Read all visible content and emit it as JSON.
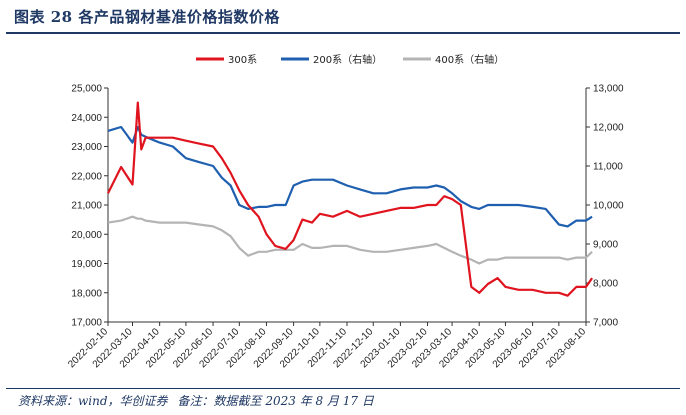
{
  "figure": {
    "title": "图表 28   各产品钢材基准价格指数价格",
    "source": "资料来源：wind，华创证券",
    "note": "备注：数据截至 2023 年 8 月 17 日"
  },
  "colors": {
    "series_300": "#e0141e",
    "series_200": "#1f5fb0",
    "series_400": "#b4b4b4",
    "axis": "#333333",
    "title": "#1f3864"
  },
  "chart_data": {
    "type": "line",
    "title": "",
    "legend_position": "top",
    "grid": false,
    "xlabel": "",
    "ylabel": "",
    "ylabel_right": "",
    "x_ticks": [
      "2022-02-10",
      "2022-03-10",
      "2022-04-10",
      "2022-05-10",
      "2022-06-10",
      "2022-07-10",
      "2022-08-10",
      "2022-09-10",
      "2022-10-10",
      "2022-11-10",
      "2022-12-10",
      "2023-01-10",
      "2023-02-10",
      "2023-03-10",
      "2023-04-10",
      "2023-05-10",
      "2023-06-10",
      "2023-07-10",
      "2023-08-10"
    ],
    "ylim_left": [
      17000,
      25000
    ],
    "yticks_left": [
      17000,
      18000,
      19000,
      20000,
      21000,
      22000,
      23000,
      24000,
      25000
    ],
    "yticks_left_labels": [
      "17,000",
      "18,000",
      "19,000",
      "20,000",
      "21,000",
      "22,000",
      "23,000",
      "24,000",
      "25,000"
    ],
    "ylim_right": [
      7000,
      13000
    ],
    "yticks_right": [
      7000,
      8000,
      9000,
      10000,
      11000,
      12000,
      13000
    ],
    "yticks_right_labels": [
      "7,000",
      "8,000",
      "9,000",
      "10,000",
      "11,000",
      "12,000",
      "13,000"
    ],
    "x": [
      "2022-02-10",
      "2022-02-25",
      "2022-03-10",
      "2022-03-16",
      "2022-03-20",
      "2022-03-25",
      "2022-04-10",
      "2022-04-25",
      "2022-05-10",
      "2022-05-25",
      "2022-06-10",
      "2022-06-20",
      "2022-06-30",
      "2022-07-10",
      "2022-07-20",
      "2022-08-01",
      "2022-08-10",
      "2022-08-20",
      "2022-09-01",
      "2022-09-10",
      "2022-09-20",
      "2022-10-01",
      "2022-10-10",
      "2022-10-25",
      "2022-11-10",
      "2022-11-25",
      "2022-12-10",
      "2022-12-25",
      "2023-01-10",
      "2023-01-25",
      "2023-02-10",
      "2023-02-20",
      "2023-03-01",
      "2023-03-10",
      "2023-03-20",
      "2023-04-01",
      "2023-04-10",
      "2023-04-20",
      "2023-05-01",
      "2023-05-10",
      "2023-05-25",
      "2023-06-10",
      "2023-06-25",
      "2023-07-10",
      "2023-07-20",
      "2023-07-30",
      "2023-08-10",
      "2023-08-17"
    ],
    "series": [
      {
        "name": "300系",
        "axis": "left",
        "values": [
          21400,
          22300,
          21700,
          24500,
          22900,
          23300,
          23300,
          23300,
          23200,
          23100,
          23000,
          22600,
          22100,
          21500,
          21000,
          20600,
          20000,
          19600,
          19500,
          19800,
          20500,
          20400,
          20700,
          20600,
          20800,
          20600,
          20700,
          20800,
          20900,
          20900,
          21000,
          21000,
          21300,
          21200,
          21000,
          18200,
          18000,
          18300,
          18500,
          18200,
          18100,
          18100,
          18000,
          18000,
          17900,
          18200,
          18200,
          18500
        ]
      },
      {
        "name": "200系（右轴）",
        "axis": "right",
        "values": [
          11900,
          12000,
          11600,
          12000,
          11800,
          11750,
          11600,
          11500,
          11200,
          11100,
          11000,
          10700,
          10500,
          10000,
          9900,
          9950,
          9950,
          10000,
          10000,
          10500,
          10600,
          10650,
          10650,
          10650,
          10500,
          10400,
          10300,
          10300,
          10400,
          10450,
          10450,
          10500,
          10450,
          10300,
          10100,
          9950,
          9900,
          10000,
          10000,
          10000,
          10000,
          9950,
          9900,
          9500,
          9450,
          9600,
          9600,
          9700
        ]
      },
      {
        "name": "400系（右轴）",
        "axis": "right",
        "values": [
          9550,
          9600,
          9700,
          9650,
          9650,
          9600,
          9550,
          9550,
          9550,
          9500,
          9450,
          9350,
          9200,
          8900,
          8700,
          8800,
          8800,
          8850,
          8850,
          8850,
          9000,
          8900,
          8900,
          8950,
          8950,
          8850,
          8800,
          8800,
          8850,
          8900,
          8950,
          9000,
          8900,
          8800,
          8700,
          8600,
          8500,
          8600,
          8600,
          8650,
          8650,
          8650,
          8650,
          8650,
          8600,
          8650,
          8650,
          8800
        ]
      }
    ]
  }
}
